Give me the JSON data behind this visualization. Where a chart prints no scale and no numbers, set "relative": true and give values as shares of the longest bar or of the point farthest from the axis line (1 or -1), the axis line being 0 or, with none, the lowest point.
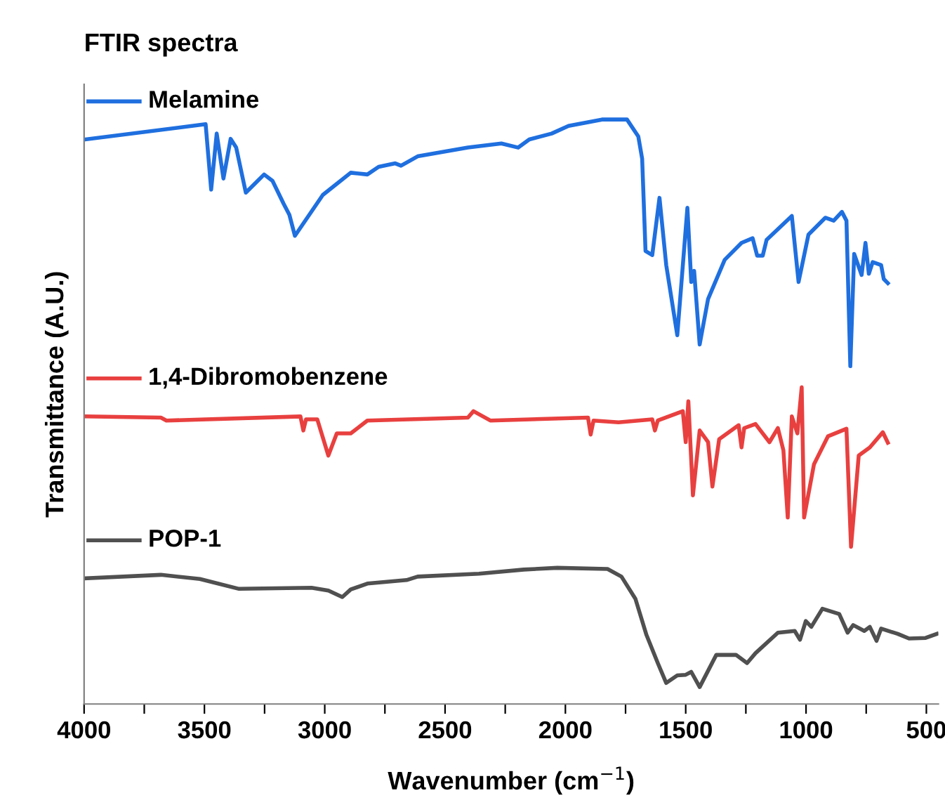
{
  "chart_data": {
    "type": "line",
    "title": "FTIR spectra",
    "xlabel": "Wavenumber (cm$^{−1}$)",
    "ylabel": "Transmittance (A.U.)",
    "relative": true,
    "xlim": [
      4000,
      450
    ],
    "xticks": [
      4000,
      {
        "value": 3750,
        "label": null
      },
      3500,
      {
        "value": 3250,
        "label": null
      },
      3000,
      {
        "value": 2750,
        "label": null
      },
      2500,
      {
        "value": 2250,
        "label": null
      },
      2000,
      {
        "value": 1750,
        "label": null
      },
      1500,
      {
        "value": 1250,
        "label": null
      },
      1000,
      {
        "value": 750,
        "label": null
      },
      500
    ],
    "tick_labels": "x",
    "grid": false,
    "legend": "left",
    "line_style": "solid",
    "marker": "none",
    "series": [
      {
        "name": "Melamine",
        "color": "#1f6fdf",
        "x": [
          3994,
          3495,
          3472,
          3449,
          3421,
          3391,
          3368,
          3328,
          3252,
          3217,
          3171,
          3147,
          3124,
          3008,
          2892,
          2823,
          2776,
          2707,
          2683,
          2614,
          2405,
          2266,
          2196,
          2150,
          2057,
          1987,
          1848,
          1744,
          1697,
          1681,
          1667,
          1639,
          1609,
          1581,
          1535,
          1493,
          1477,
          1465,
          1442,
          1407,
          1338,
          1268,
          1222,
          1203,
          1180,
          1164,
          1059,
          1031,
          990,
          920,
          885,
          851,
          832,
          816,
          800,
          769,
          753,
          739,
          723,
          688,
          677,
          660
        ],
        "values": [
          0.966,
          0.992,
          0.88,
          0.976,
          0.899,
          0.967,
          0.952,
          0.875,
          0.906,
          0.895,
          0.856,
          0.837,
          0.801,
          0.871,
          0.909,
          0.906,
          0.919,
          0.925,
          0.921,
          0.937,
          0.952,
          0.959,
          0.952,
          0.966,
          0.976,
          0.989,
          1,
          1,
          0.971,
          0.933,
          0.775,
          0.768,
          0.866,
          0.751,
          0.631,
          0.849,
          0.722,
          0.741,
          0.615,
          0.693,
          0.76,
          0.789,
          0.797,
          0.767,
          0.767,
          0.794,
          0.835,
          0.722,
          0.803,
          0.832,
          0.827,
          0.842,
          0.827,
          0.578,
          0.77,
          0.734,
          0.789,
          0.736,
          0.756,
          0.751,
          0.727,
          0.72
        ]
      },
      {
        "name": "1,4-Dibromobenzene",
        "color": "#e8403f",
        "x": [
          3994,
          3681,
          3658,
          3101,
          3089,
          3078,
          3031,
          2985,
          2950,
          2892,
          2823,
          2405,
          2382,
          2312,
          1906,
          1895,
          1883,
          1779,
          1639,
          1628,
          1616,
          1512,
          1500,
          1489,
          1470,
          1442,
          1407,
          1389,
          1361,
          1280,
          1268,
          1257,
          1210,
          1152,
          1117,
          1094,
          1076,
          1059,
          1036,
          1018,
          1008,
          967,
          909,
          832,
          813,
          781,
          735,
          681,
          660
        ],
        "values": [
          0.492,
          0.49,
          0.485,
          0.492,
          0.468,
          0.487,
          0.487,
          0.425,
          0.463,
          0.463,
          0.485,
          0.49,
          0.501,
          0.485,
          0.49,
          0.461,
          0.485,
          0.482,
          0.487,
          0.468,
          0.485,
          0.501,
          0.448,
          0.518,
          0.357,
          0.468,
          0.448,
          0.372,
          0.453,
          0.477,
          0.439,
          0.472,
          0.479,
          0.448,
          0.472,
          0.434,
          0.319,
          0.492,
          0.463,
          0.542,
          0.319,
          0.41,
          0.458,
          0.471,
          0.269,
          0.425,
          0.439,
          0.465,
          0.447
        ]
      },
      {
        "name": "POP-1",
        "color": "#505050",
        "x": [
          3994,
          3681,
          3519,
          3356,
          3055,
          2985,
          2927,
          2892,
          2823,
          2660,
          2614,
          2359,
          2173,
          2034,
          1825,
          1767,
          1709,
          1663,
          1616,
          1581,
          1535,
          1500,
          1477,
          1442,
          1373,
          1291,
          1245,
          1210,
          1117,
          1047,
          1025,
          1001,
          978,
          932,
          862,
          827,
          804,
          758,
          735,
          707,
          688,
          619,
          572,
          503,
          456
        ],
        "values": [
          0.215,
          0.221,
          0.214,
          0.197,
          0.199,
          0.194,
          0.183,
          0.196,
          0.206,
          0.212,
          0.218,
          0.223,
          0.23,
          0.233,
          0.231,
          0.218,
          0.18,
          0.118,
          0.07,
          0.036,
          0.049,
          0.05,
          0.055,
          0.029,
          0.084,
          0.084,
          0.07,
          0.087,
          0.122,
          0.125,
          0.11,
          0.142,
          0.132,
          0.163,
          0.154,
          0.122,
          0.135,
          0.125,
          0.132,
          0.108,
          0.129,
          0.12,
          0.112,
          0.113,
          0.12
        ]
      }
    ]
  }
}
